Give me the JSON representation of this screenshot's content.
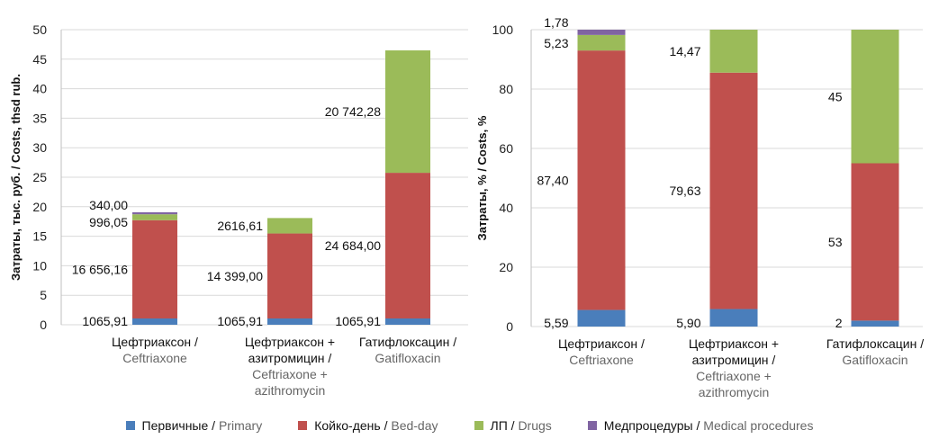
{
  "colors": {
    "primary": "#4a7ebb",
    "bed_day": "#c0504d",
    "drugs": "#9bbb59",
    "procedures": "#8064a2"
  },
  "legend": [
    {
      "key": "primary",
      "ru": "Первичные",
      "sep": " / ",
      "en": "Primary"
    },
    {
      "key": "bed_day",
      "ru": "Койко-день",
      "sep": " / ",
      "en": "Bed-day"
    },
    {
      "key": "drugs",
      "ru": "ЛП",
      "sep": " / ",
      "en": "Drugs"
    },
    {
      "key": "procedures",
      "ru": "Медпроцедуры",
      "sep": " / ",
      "en": "Medical procedures"
    }
  ],
  "chart_data": [
    {
      "type": "bar",
      "stacked": true,
      "ylabel": "Затраты, тыс. руб. / Costs, thsd rub.",
      "ylim": [
        0,
        50
      ],
      "yticks": [
        "0",
        "5",
        "10",
        "15",
        "20",
        "25",
        "30",
        "35",
        "40",
        "45",
        "50"
      ],
      "grid": true,
      "categories": [
        {
          "ru": [
            "Цефтриаксон /"
          ],
          "en": [
            "Ceftriaxone"
          ]
        },
        {
          "ru": [
            "Цефтриаксон +",
            "азитромицин /"
          ],
          "en": [
            "Ceftriaxone +",
            "azithromycin"
          ]
        },
        {
          "ru": [
            "Гатифлоксацин /"
          ],
          "en": [
            "Gatifloxacin"
          ]
        }
      ],
      "series": [
        {
          "key": "primary",
          "values": [
            1.06591,
            1.06591,
            1.06591
          ],
          "labels": [
            "1065,91",
            "1065,91",
            "1065,91"
          ]
        },
        {
          "key": "bed_day",
          "values": [
            16.65616,
            14.399,
            24.684
          ],
          "labels": [
            "16 656,16",
            "14 399,00",
            "24 684,00"
          ]
        },
        {
          "key": "drugs",
          "values": [
            0.99605,
            2.61661,
            20.74228
          ],
          "labels": [
            "996,05",
            "2616,61",
            "20 742,28"
          ]
        },
        {
          "key": "procedures",
          "values": [
            0.34,
            0,
            0
          ],
          "labels": [
            "340,00",
            "",
            ""
          ]
        }
      ]
    },
    {
      "type": "bar",
      "stacked": true,
      "ylabel": "Затраты, % / Costs, %",
      "ylim": [
        0,
        100
      ],
      "yticks": [
        "0",
        "20",
        "40",
        "60",
        "80",
        "100"
      ],
      "grid": true,
      "categories": [
        {
          "ru": [
            "Цефтриаксон /"
          ],
          "en": [
            "Ceftriaxone"
          ]
        },
        {
          "ru": [
            "Цефтриаксон +",
            "азитромицин /"
          ],
          "en": [
            "Ceftriaxone +",
            "azithromycin"
          ]
        },
        {
          "ru": [
            "Гатифлоксацин /"
          ],
          "en": [
            "Gatifloxacin"
          ]
        }
      ],
      "series": [
        {
          "key": "primary",
          "values": [
            5.59,
            5.9,
            2
          ],
          "labels": [
            "5,59",
            "5,90",
            "2"
          ]
        },
        {
          "key": "bed_day",
          "values": [
            87.4,
            79.63,
            53
          ],
          "labels": [
            "87,40",
            "79,63",
            "53"
          ]
        },
        {
          "key": "drugs",
          "values": [
            5.23,
            14.47,
            45
          ],
          "labels": [
            "5,23",
            "14,47",
            "45"
          ]
        },
        {
          "key": "procedures",
          "values": [
            1.78,
            0,
            0
          ],
          "labels": [
            "1,78",
            "",
            ""
          ]
        }
      ]
    }
  ]
}
